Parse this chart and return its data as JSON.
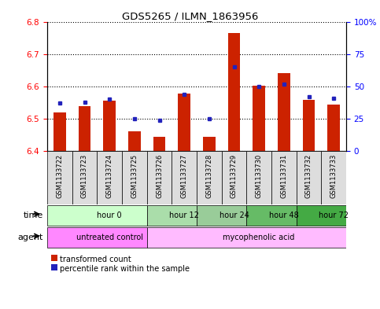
{
  "title": "GDS5265 / ILMN_1863956",
  "samples": [
    "GSM1133722",
    "GSM1133723",
    "GSM1133724",
    "GSM1133725",
    "GSM1133726",
    "GSM1133727",
    "GSM1133728",
    "GSM1133729",
    "GSM1133730",
    "GSM1133731",
    "GSM1133732",
    "GSM1133733"
  ],
  "red_values": [
    6.52,
    6.54,
    6.555,
    6.46,
    6.445,
    6.578,
    6.445,
    6.765,
    6.602,
    6.642,
    6.558,
    6.545
  ],
  "blue_values": [
    37,
    38,
    40,
    25,
    24,
    44,
    25,
    65,
    50,
    52,
    42,
    41
  ],
  "ymin": 6.4,
  "ymax": 6.8,
  "y2min": 0,
  "y2max": 100,
  "yticks": [
    6.4,
    6.5,
    6.6,
    6.7,
    6.8
  ],
  "y2ticks": [
    0,
    25,
    50,
    75,
    100
  ],
  "y2ticklabels": [
    "0",
    "25",
    "50",
    "75",
    "100%"
  ],
  "time_groups": [
    {
      "label": "hour 0",
      "start": 0,
      "end": 4,
      "color": "#ccffcc"
    },
    {
      "label": "hour 12",
      "start": 4,
      "end": 6,
      "color": "#aaddaa"
    },
    {
      "label": "hour 24",
      "start": 6,
      "end": 8,
      "color": "#99cc99"
    },
    {
      "label": "hour 48",
      "start": 8,
      "end": 10,
      "color": "#66bb66"
    },
    {
      "label": "hour 72",
      "start": 10,
      "end": 12,
      "color": "#44aa44"
    }
  ],
  "agent_groups": [
    {
      "label": "untreated control",
      "start": 0,
      "end": 4,
      "color": "#ff88ff"
    },
    {
      "label": "mycophenolic acid",
      "start": 4,
      "end": 12,
      "color": "#ffbbff"
    }
  ],
  "bar_color": "#cc2200",
  "dot_color": "#2222bb",
  "legend_red": "transformed count",
  "legend_blue": "percentile rank within the sample",
  "bar_width": 0.5
}
